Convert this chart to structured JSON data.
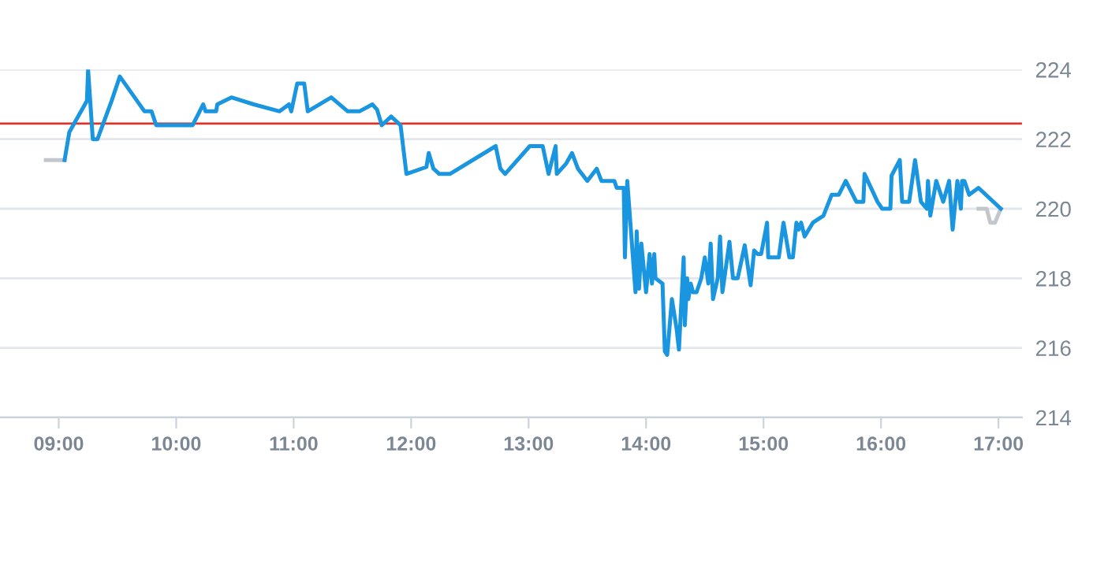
{
  "chart_data": {
    "type": "line",
    "xlim": [
      8.5,
      17.2
    ],
    "xticks": [
      {
        "value": 9,
        "label": "09:00"
      },
      {
        "value": 10,
        "label": "10:00"
      },
      {
        "value": 11,
        "label": "11:00"
      },
      {
        "value": 12,
        "label": "12:00"
      },
      {
        "value": 13,
        "label": "13:00"
      },
      {
        "value": 14,
        "label": "14:00"
      },
      {
        "value": 15,
        "label": "15:00"
      },
      {
        "value": 16,
        "label": "16:00"
      },
      {
        "value": 17,
        "label": "17:00"
      }
    ],
    "ylim": [
      214,
      224
    ],
    "yticks": [
      214,
      216,
      218,
      220,
      222,
      224
    ],
    "grid": "y",
    "marker": "none",
    "line_style": "solid",
    "ref_lines": [
      {
        "axis": "y",
        "value": 222.45,
        "color": "#d9352b"
      }
    ],
    "series": [
      {
        "color": "#c3c7cc",
        "x": [
          8.89,
          9.05
        ],
        "values": [
          221.4,
          221.4
        ]
      },
      {
        "color": "#c3c7cc",
        "x": [
          16.83,
          16.9,
          16.93,
          16.97,
          17.02
        ],
        "values": [
          220.0,
          220.0,
          219.6,
          219.6,
          220.0
        ]
      },
      {
        "color": "#1a96e0",
        "x": [
          9.05,
          9.09,
          9.24,
          9.25,
          9.29,
          9.33,
          9.45,
          9.52,
          9.73,
          9.79,
          9.83,
          10.14,
          10.23,
          10.25,
          10.34,
          10.35,
          10.47,
          10.66,
          10.88,
          10.96,
          10.98,
          11.03,
          11.09,
          11.12,
          11.32,
          11.46,
          11.56,
          11.67,
          11.71,
          11.75,
          11.83,
          11.91,
          11.96,
          12.13,
          12.15,
          12.19,
          12.24,
          12.33,
          12.72,
          12.76,
          12.8,
          13.01,
          13.12,
          13.17,
          13.23,
          13.24,
          13.32,
          13.37,
          13.42,
          13.5,
          13.58,
          13.62,
          13.73,
          13.75,
          13.81,
          13.82,
          13.84,
          13.91,
          13.92,
          13.94,
          13.96,
          14.0,
          14.03,
          14.05,
          14.07,
          14.08,
          14.14,
          14.16,
          14.18,
          14.22,
          14.26,
          14.28,
          14.32,
          14.33,
          14.35,
          14.36,
          14.38,
          14.4,
          14.43,
          14.47,
          14.5,
          14.53,
          14.55,
          14.57,
          14.61,
          14.63,
          14.65,
          14.71,
          14.74,
          14.78,
          14.84,
          14.89,
          14.92,
          14.95,
          14.98,
          15.03,
          15.04,
          15.13,
          15.17,
          15.22,
          15.25,
          15.28,
          15.3,
          15.32,
          15.35,
          15.42,
          15.51,
          15.58,
          15.64,
          15.7,
          15.79,
          15.85,
          15.86,
          15.97,
          16.01,
          16.08,
          16.09,
          16.16,
          16.18,
          16.24,
          16.29,
          16.34,
          16.39,
          16.4,
          16.42,
          16.47,
          16.53,
          16.58,
          16.61,
          16.65,
          16.68,
          16.69,
          16.71,
          16.75,
          16.83,
          17.02
        ],
        "values": [
          221.4,
          222.2,
          223.1,
          224.0,
          222.0,
          222.0,
          223.1,
          223.8,
          222.8,
          222.8,
          222.4,
          222.4,
          223.0,
          222.8,
          222.8,
          223.0,
          223.2,
          223.0,
          222.8,
          223.0,
          222.8,
          223.6,
          223.6,
          222.8,
          223.2,
          222.8,
          222.8,
          223.0,
          222.85,
          222.4,
          222.65,
          222.4,
          221.0,
          221.2,
          221.6,
          221.15,
          221.0,
          221.0,
          221.8,
          221.15,
          221.0,
          221.8,
          221.8,
          221.0,
          221.8,
          221.0,
          221.3,
          221.6,
          221.15,
          220.8,
          221.15,
          220.8,
          220.8,
          220.6,
          220.6,
          218.6,
          220.8,
          217.6,
          219.35,
          217.7,
          219.0,
          217.6,
          218.7,
          217.85,
          218.7,
          218.0,
          217.85,
          215.9,
          215.8,
          217.4,
          216.55,
          215.95,
          218.6,
          216.65,
          218.0,
          217.4,
          217.85,
          217.6,
          217.6,
          218.0,
          218.6,
          217.85,
          219.0,
          217.4,
          218.0,
          219.2,
          217.6,
          219.05,
          218.0,
          218.0,
          218.95,
          217.8,
          218.8,
          218.7,
          218.7,
          219.6,
          218.6,
          218.6,
          219.6,
          218.6,
          218.6,
          219.6,
          219.4,
          219.6,
          219.2,
          219.6,
          219.8,
          220.4,
          220.4,
          220.8,
          220.2,
          220.2,
          221.0,
          220.2,
          220.0,
          220.0,
          220.95,
          221.4,
          220.2,
          220.2,
          221.4,
          220.2,
          220.0,
          220.8,
          219.8,
          220.8,
          220.2,
          220.8,
          219.4,
          220.8,
          220.0,
          220.8,
          220.8,
          220.4,
          220.6,
          220.0
        ]
      }
    ]
  }
}
